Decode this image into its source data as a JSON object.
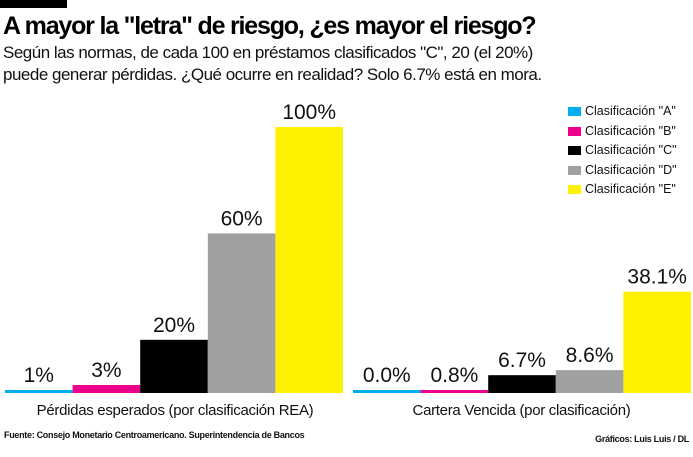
{
  "title": "A mayor la \"letra\" de riesgo, ¿es mayor el riesgo?",
  "subtitle_lines": [
    "Según las normas, de cada 100 en préstamos clasificados \"C\", 20 (el 20%)",
    "puede generar pérdidas. ¿Qué ocurre en realidad? Solo 6.7% está en mora."
  ],
  "source": "Fuente: Consejo Monetario Centroamericano. Superintendencia de Bancos",
  "credit": "Gráficos: Luis Luis / DL",
  "chart_data": {
    "type": "bar",
    "ylim": [
      0,
      100
    ],
    "grid": false,
    "legend_position": "top-right",
    "categories": [
      "Pérdidas esperados (por clasificación REA)",
      "Cartera Vencida (por clasificación)"
    ],
    "series": [
      {
        "name": "Clasificación \"A\"",
        "color": "#00aeef",
        "values": [
          1,
          0.0
        ],
        "labels": [
          "1%",
          "0.0%"
        ]
      },
      {
        "name": "Clasificación \"B\"",
        "color": "#ec008c",
        "values": [
          3,
          0.8
        ],
        "labels": [
          "3%",
          "0.8%"
        ]
      },
      {
        "name": "Clasificación \"C\"",
        "color": "#000000",
        "values": [
          20,
          6.7
        ],
        "labels": [
          "20%",
          "6.7%"
        ]
      },
      {
        "name": "Clasificación \"D\"",
        "color": "#a0a0a3",
        "values": [
          60,
          8.6
        ],
        "labels": [
          "60%",
          "8.6%"
        ]
      },
      {
        "name": "Clasificación \"E\"",
        "color": "#fff200",
        "values": [
          100,
          38.1
        ],
        "labels": [
          "100%",
          "38.1%"
        ]
      }
    ]
  }
}
